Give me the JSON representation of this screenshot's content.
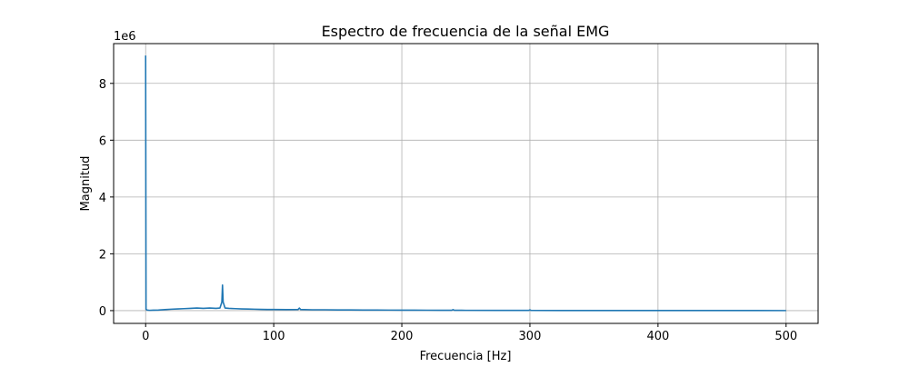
{
  "chart_data": {
    "type": "line",
    "title": "Espectro de frecuencia de la señal EMG",
    "xlabel": "Frecuencia [Hz]",
    "ylabel": "Magnitud",
    "y_scale_label": "1e6",
    "xlim": [
      -25,
      525
    ],
    "ylim": [
      -0.45,
      9.4
    ],
    "x_ticks": [
      0,
      100,
      200,
      300,
      400,
      500
    ],
    "x_tick_labels": [
      "0",
      "100",
      "200",
      "300",
      "400",
      "500"
    ],
    "y_ticks": [
      0,
      2,
      4,
      6,
      8
    ],
    "y_tick_labels": [
      "0",
      "2",
      "4",
      "6",
      "8"
    ],
    "grid": true,
    "line_color": "#1f77b4",
    "series": [
      {
        "x": [
          0,
          0.3,
          1,
          3,
          6,
          10,
          15,
          20,
          25,
          30,
          35,
          40,
          45,
          50,
          55,
          58,
          59.5,
          60,
          60.5,
          62,
          65,
          70,
          75,
          80,
          85,
          90,
          95,
          100,
          110,
          119,
          120,
          121,
          130,
          140,
          150,
          160,
          170,
          180,
          190,
          200,
          210,
          220,
          230,
          239,
          240,
          241,
          250,
          275,
          299,
          300,
          301,
          325,
          350,
          375,
          400,
          425,
          450,
          475,
          500
        ],
        "y": [
          8.98,
          0.05,
          0.02,
          0.01,
          0.015,
          0.02,
          0.035,
          0.05,
          0.06,
          0.07,
          0.08,
          0.09,
          0.08,
          0.09,
          0.08,
          0.09,
          0.3,
          0.9,
          0.3,
          0.09,
          0.08,
          0.07,
          0.06,
          0.055,
          0.05,
          0.045,
          0.04,
          0.04,
          0.035,
          0.04,
          0.09,
          0.04,
          0.03,
          0.03,
          0.025,
          0.025,
          0.02,
          0.02,
          0.018,
          0.016,
          0.015,
          0.014,
          0.012,
          0.012,
          0.035,
          0.012,
          0.01,
          0.008,
          0.007,
          0.025,
          0.007,
          0.005,
          0.005,
          0.004,
          0.004,
          0.003,
          0.003,
          0.003,
          0.002
        ]
      }
    ]
  }
}
